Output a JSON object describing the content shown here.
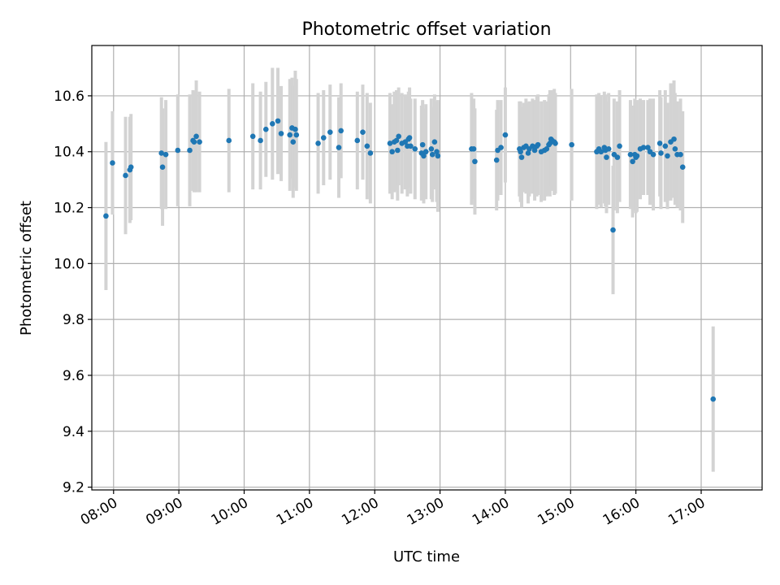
{
  "chart_data": {
    "type": "scatter",
    "title": "Photometric offset variation",
    "xlabel": "UTC time",
    "ylabel": "Photometric offset",
    "x_ticks": [
      "08:00",
      "09:00",
      "10:00",
      "11:00",
      "12:00",
      "13:00",
      "14:00",
      "15:00",
      "16:00",
      "17:00"
    ],
    "y_ticks": [
      "9.2",
      "9.4",
      "9.6",
      "9.8",
      "10.0",
      "10.2",
      "10.4",
      "10.6"
    ],
    "xlim": [
      "07:40",
      "17:56"
    ],
    "ylim": [
      9.19,
      10.78
    ],
    "grid": true,
    "colors": {
      "point": "#1f77b4",
      "errorbar": "#d3d3d3",
      "grid": "#b0b0b0"
    },
    "series": [
      {
        "points": [
          {
            "t": "07:53",
            "y": 10.17,
            "e": 0.265
          },
          {
            "t": "07:59",
            "y": 10.36,
            "e": 0.185
          },
          {
            "t": "08:11",
            "y": 10.315,
            "e": 0.21
          },
          {
            "t": "08:15",
            "y": 10.335,
            "e": 0.19
          },
          {
            "t": "08:16",
            "y": 10.345,
            "e": 0.19
          },
          {
            "t": "08:44",
            "y": 10.395,
            "e": 0.2
          },
          {
            "t": "08:45",
            "y": 10.345,
            "e": 0.21
          },
          {
            "t": "08:48",
            "y": 10.39,
            "e": 0.195
          },
          {
            "t": "08:59",
            "y": 10.405,
            "e": 0.2
          },
          {
            "t": "09:10",
            "y": 10.405,
            "e": 0.2
          },
          {
            "t": "09:13",
            "y": 10.44,
            "e": 0.18
          },
          {
            "t": "09:14",
            "y": 10.435,
            "e": 0.18
          },
          {
            "t": "09:16",
            "y": 10.455,
            "e": 0.2
          },
          {
            "t": "09:19",
            "y": 10.435,
            "e": 0.18
          },
          {
            "t": "09:46",
            "y": 10.44,
            "e": 0.185
          },
          {
            "t": "10:08",
            "y": 10.455,
            "e": 0.19
          },
          {
            "t": "10:15",
            "y": 10.44,
            "e": 0.175
          },
          {
            "t": "10:20",
            "y": 10.48,
            "e": 0.17
          },
          {
            "t": "10:26",
            "y": 10.5,
            "e": 0.2
          },
          {
            "t": "10:31",
            "y": 10.51,
            "e": 0.19
          },
          {
            "t": "10:34",
            "y": 10.465,
            "e": 0.17
          },
          {
            "t": "10:42",
            "y": 10.46,
            "e": 0.2
          },
          {
            "t": "10:44",
            "y": 10.485,
            "e": 0.18
          },
          {
            "t": "10:45",
            "y": 10.435,
            "e": 0.2
          },
          {
            "t": "10:47",
            "y": 10.48,
            "e": 0.21
          },
          {
            "t": "10:48",
            "y": 10.46,
            "e": 0.2
          },
          {
            "t": "11:08",
            "y": 10.43,
            "e": 0.18
          },
          {
            "t": "11:13",
            "y": 10.45,
            "e": 0.17
          },
          {
            "t": "11:19",
            "y": 10.47,
            "e": 0.17
          },
          {
            "t": "11:27",
            "y": 10.415,
            "e": 0.18
          },
          {
            "t": "11:29",
            "y": 10.475,
            "e": 0.17
          },
          {
            "t": "11:44",
            "y": 10.44,
            "e": 0.175
          },
          {
            "t": "11:49",
            "y": 10.47,
            "e": 0.17
          },
          {
            "t": "11:53",
            "y": 10.42,
            "e": 0.19
          },
          {
            "t": "11:56",
            "y": 10.395,
            "e": 0.18
          },
          {
            "t": "12:14",
            "y": 10.43,
            "e": 0.18
          },
          {
            "t": "12:16",
            "y": 10.4,
            "e": 0.17
          },
          {
            "t": "12:18",
            "y": 10.435,
            "e": 0.18
          },
          {
            "t": "12:20",
            "y": 10.44,
            "e": 0.18
          },
          {
            "t": "12:21",
            "y": 10.405,
            "e": 0.18
          },
          {
            "t": "12:22",
            "y": 10.455,
            "e": 0.175
          },
          {
            "t": "12:25",
            "y": 10.43,
            "e": 0.18
          },
          {
            "t": "12:28",
            "y": 10.435,
            "e": 0.17
          },
          {
            "t": "12:30",
            "y": 10.42,
            "e": 0.18
          },
          {
            "t": "12:31",
            "y": 10.445,
            "e": 0.17
          },
          {
            "t": "12:32",
            "y": 10.45,
            "e": 0.18
          },
          {
            "t": "12:33",
            "y": 10.42,
            "e": 0.17
          },
          {
            "t": "12:37",
            "y": 10.41,
            "e": 0.18
          },
          {
            "t": "12:43",
            "y": 10.395,
            "e": 0.17
          },
          {
            "t": "12:44",
            "y": 10.425,
            "e": 0.16
          },
          {
            "t": "12:45",
            "y": 10.385,
            "e": 0.17
          },
          {
            "t": "12:47",
            "y": 10.4,
            "e": 0.17
          },
          {
            "t": "12:52",
            "y": 10.41,
            "e": 0.18
          },
          {
            "t": "12:53",
            "y": 10.39,
            "e": 0.17
          },
          {
            "t": "12:55",
            "y": 10.435,
            "e": 0.17
          },
          {
            "t": "12:57",
            "y": 10.4,
            "e": 0.18
          },
          {
            "t": "12:58",
            "y": 10.385,
            "e": 0.2
          },
          {
            "t": "13:29",
            "y": 10.41,
            "e": 0.2
          },
          {
            "t": "13:31",
            "y": 10.41,
            "e": 0.18
          },
          {
            "t": "13:32",
            "y": 10.365,
            "e": 0.19
          },
          {
            "t": "13:52",
            "y": 10.37,
            "e": 0.18
          },
          {
            "t": "13:53",
            "y": 10.405,
            "e": 0.18
          },
          {
            "t": "13:56",
            "y": 10.415,
            "e": 0.17
          },
          {
            "t": "14:00",
            "y": 10.46,
            "e": 0.17
          },
          {
            "t": "14:13",
            "y": 10.41,
            "e": 0.17
          },
          {
            "t": "14:14",
            "y": 10.4,
            "e": 0.18
          },
          {
            "t": "14:15",
            "y": 10.38,
            "e": 0.18
          },
          {
            "t": "14:17",
            "y": 10.415,
            "e": 0.16
          },
          {
            "t": "14:19",
            "y": 10.42,
            "e": 0.17
          },
          {
            "t": "14:21",
            "y": 10.395,
            "e": 0.18
          },
          {
            "t": "14:22",
            "y": 10.41,
            "e": 0.17
          },
          {
            "t": "14:25",
            "y": 10.42,
            "e": 0.17
          },
          {
            "t": "14:27",
            "y": 10.405,
            "e": 0.18
          },
          {
            "t": "14:29",
            "y": 10.42,
            "e": 0.18
          },
          {
            "t": "14:30",
            "y": 10.425,
            "e": 0.18
          },
          {
            "t": "14:33",
            "y": 10.4,
            "e": 0.18
          },
          {
            "t": "14:36",
            "y": 10.405,
            "e": 0.18
          },
          {
            "t": "14:38",
            "y": 10.41,
            "e": 0.17
          },
          {
            "t": "14:40",
            "y": 10.425,
            "e": 0.18
          },
          {
            "t": "14:41",
            "y": 10.43,
            "e": 0.19
          },
          {
            "t": "14:42",
            "y": 10.445,
            "e": 0.17
          },
          {
            "t": "14:43",
            "y": 10.44,
            "e": 0.18
          },
          {
            "t": "14:45",
            "y": 10.435,
            "e": 0.19
          },
          {
            "t": "14:46",
            "y": 10.43,
            "e": 0.18
          },
          {
            "t": "15:01",
            "y": 10.425,
            "e": 0.2
          },
          {
            "t": "15:24",
            "y": 10.4,
            "e": 0.205
          },
          {
            "t": "15:26",
            "y": 10.41,
            "e": 0.2
          },
          {
            "t": "15:28",
            "y": 10.4,
            "e": 0.2
          },
          {
            "t": "15:31",
            "y": 10.415,
            "e": 0.2
          },
          {
            "t": "15:32",
            "y": 10.405,
            "e": 0.2
          },
          {
            "t": "15:33",
            "y": 10.38,
            "e": 0.2
          },
          {
            "t": "15:35",
            "y": 10.41,
            "e": 0.2
          },
          {
            "t": "15:39",
            "y": 10.12,
            "e": 0.23
          },
          {
            "t": "15:40",
            "y": 10.39,
            "e": 0.2
          },
          {
            "t": "15:43",
            "y": 10.38,
            "e": 0.2
          },
          {
            "t": "15:45",
            "y": 10.42,
            "e": 0.2
          },
          {
            "t": "15:55",
            "y": 10.39,
            "e": 0.195
          },
          {
            "t": "15:57",
            "y": 10.365,
            "e": 0.2
          },
          {
            "t": "15:59",
            "y": 10.39,
            "e": 0.2
          },
          {
            "t": "16:00",
            "y": 10.38,
            "e": 0.2
          },
          {
            "t": "16:01",
            "y": 10.385,
            "e": 0.2
          },
          {
            "t": "16:04",
            "y": 10.41,
            "e": 0.18
          },
          {
            "t": "16:07",
            "y": 10.415,
            "e": 0.17
          },
          {
            "t": "16:11",
            "y": 10.415,
            "e": 0.17
          },
          {
            "t": "16:13",
            "y": 10.4,
            "e": 0.19
          },
          {
            "t": "16:16",
            "y": 10.39,
            "e": 0.2
          },
          {
            "t": "16:22",
            "y": 10.43,
            "e": 0.19
          },
          {
            "t": "16:23",
            "y": 10.395,
            "e": 0.2
          },
          {
            "t": "16:27",
            "y": 10.42,
            "e": 0.2
          },
          {
            "t": "16:29",
            "y": 10.385,
            "e": 0.19
          },
          {
            "t": "16:32",
            "y": 10.435,
            "e": 0.21
          },
          {
            "t": "16:35",
            "y": 10.445,
            "e": 0.21
          },
          {
            "t": "16:36",
            "y": 10.41,
            "e": 0.2
          },
          {
            "t": "16:38",
            "y": 10.39,
            "e": 0.19
          },
          {
            "t": "16:41",
            "y": 10.39,
            "e": 0.2
          },
          {
            "t": "16:43",
            "y": 10.345,
            "e": 0.2
          },
          {
            "t": "17:11",
            "y": 9.515,
            "e": 0.26
          }
        ]
      }
    ]
  }
}
